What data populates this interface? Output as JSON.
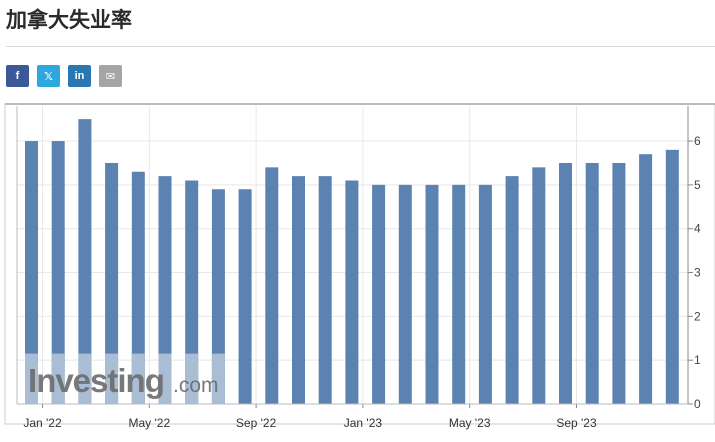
{
  "page": {
    "title": "加拿大失业率"
  },
  "share": {
    "buttons": [
      {
        "name": "facebook",
        "glyph": "f",
        "color": "#3b5998"
      },
      {
        "name": "x",
        "glyph": "𝕏",
        "color": "#2ea7df"
      },
      {
        "name": "linkedin",
        "glyph": "in",
        "color": "#2a78b2"
      },
      {
        "name": "email",
        "glyph": "✉",
        "color": "#a5a5a5"
      }
    ]
  },
  "watermark": {
    "brand": "Investing",
    "suffix": ".com"
  },
  "colors": {
    "bar": "#5b82b0",
    "bar_highlight": "#a9bdd4",
    "grid": "#e8e8e8",
    "axis": "#888888"
  },
  "chart_data": {
    "type": "bar",
    "categories": [
      "2022-01",
      "2022-02",
      "2022-03",
      "2022-04",
      "2022-05",
      "2022-06",
      "2022-07",
      "2022-08",
      "2022-09",
      "2022-10",
      "2022-11",
      "2022-12",
      "2023-01",
      "2023-02",
      "2023-03",
      "2023-04",
      "2023-05",
      "2023-06",
      "2023-07",
      "2023-08",
      "2023-09",
      "2023-10",
      "2023-11",
      "2023-12"
    ],
    "values": [
      6.0,
      6.0,
      6.5,
      5.5,
      5.3,
      5.2,
      5.1,
      4.9,
      4.9,
      5.4,
      5.2,
      5.2,
      5.1,
      5.0,
      5.0,
      5.0,
      5.0,
      5.0,
      5.2,
      5.4,
      5.5,
      5.5,
      5.5,
      5.7
    ],
    "extra_last_value": 5.8,
    "x_tick_labels": [
      {
        "index": 0,
        "label": "Jan '22"
      },
      {
        "index": 4,
        "label": "May '22"
      },
      {
        "index": 8,
        "label": "Sep '22"
      },
      {
        "index": 12,
        "label": "Jan '23"
      },
      {
        "index": 16,
        "label": "May '23"
      },
      {
        "index": 20,
        "label": "Sep '23"
      }
    ],
    "y_ticks": [
      "0",
      "1",
      "2",
      "3",
      "4",
      "5",
      "6"
    ],
    "ylim": [
      0,
      6.8
    ],
    "grid": true,
    "y_axis_side": "right"
  }
}
